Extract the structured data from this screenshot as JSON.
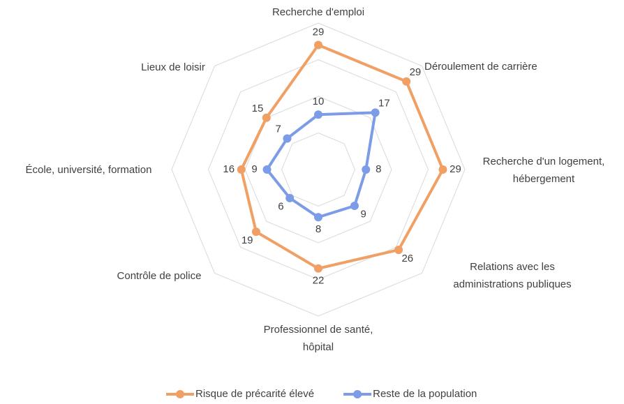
{
  "chart_data": {
    "type": "radar",
    "categories": [
      "Recherche d'emploi",
      "Déroulement de carrière",
      "Recherche d'un logement,\nhébergement",
      "Relations avec les\nadministrations publiques",
      "Professionnel de santé,\nhôpital",
      "Contrôle de police",
      "École, université, formation",
      "Lieux de loisir"
    ],
    "series": [
      {
        "name": "Risque de précarité élevé",
        "color": "#f0a064",
        "values": [
          29,
          29,
          29,
          26,
          22,
          19,
          16,
          15
        ]
      },
      {
        "name": "Reste de la population",
        "color": "#7c9ce8",
        "values": [
          10,
          17,
          8,
          9,
          8,
          6,
          9,
          7
        ]
      }
    ],
    "ylim": [
      -5,
      35
    ],
    "yticks": [
      -5,
      5,
      15,
      25,
      35
    ],
    "grid": true,
    "legend": "bottom"
  }
}
